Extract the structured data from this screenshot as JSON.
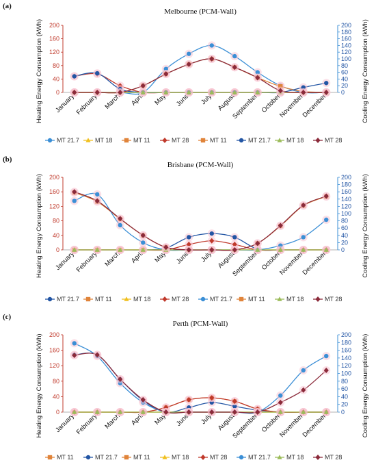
{
  "chart_data": [
    {
      "panel_label": "(a)",
      "type": "line",
      "title": "Melbourne (PCM-Wall)",
      "categories": [
        "January",
        "February",
        "March",
        "April",
        "May",
        "June",
        "July",
        "August",
        "September",
        "October",
        "November",
        "December"
      ],
      "ylabel": "Heating Energy Consumption (kWh)",
      "y2label": "Cooling  Energy Consumption (kWh)",
      "ylim": [
        0,
        200
      ],
      "y2lim": [
        0,
        200
      ],
      "yticks": [
        "0",
        "40",
        "80",
        "120",
        "160",
        "200"
      ],
      "y2ticks": [
        "0",
        "20",
        "40",
        "60",
        "80",
        "100",
        "120",
        "140",
        "160",
        "180",
        "200"
      ],
      "series": [
        {
          "name": "MT 21.7",
          "axis": "left",
          "color": "#3b8fd6",
          "marker": "circle",
          "values": [
            0,
            0,
            0,
            0,
            70,
            115,
            140,
            108,
            60,
            20,
            0,
            0
          ]
        },
        {
          "name": "MT 18",
          "axis": "left",
          "color": "#f0c020",
          "marker": "triangle",
          "values": [
            0,
            0,
            0,
            0,
            0,
            0,
            0,
            0,
            0,
            0,
            0,
            0
          ]
        },
        {
          "name": "MT 11",
          "axis": "left",
          "color": "#e0843a",
          "marker": "square",
          "values": [
            0,
            0,
            0,
            20,
            55,
            84,
            100,
            75,
            44,
            18,
            3,
            0
          ]
        },
        {
          "name": "MT 28",
          "axis": "left",
          "color": "#c0392b",
          "marker": "diamond",
          "values": [
            48,
            55,
            20,
            0,
            0,
            0,
            0,
            0,
            0,
            0,
            0,
            0
          ]
        },
        {
          "name": "MT 11",
          "axis": "right",
          "color": "#e0843a",
          "marker": "square",
          "values": [
            0,
            0,
            0,
            0,
            0,
            0,
            0,
            0,
            0,
            0,
            0,
            0
          ]
        },
        {
          "name": "MT 21.7",
          "axis": "right",
          "color": "#2255a4",
          "marker": "circle",
          "values": [
            48,
            57,
            10,
            0,
            0,
            0,
            0,
            0,
            0,
            0,
            15,
            28
          ]
        },
        {
          "name": "MT 18",
          "axis": "right",
          "color": "#9bbb59",
          "marker": "triangle",
          "values": [
            0,
            0,
            0,
            0,
            0,
            0,
            0,
            0,
            0,
            0,
            0,
            0
          ]
        },
        {
          "name": "MT 28",
          "axis": "right",
          "color": "#8b2a3a",
          "marker": "diamond",
          "values": [
            0,
            0,
            0,
            20,
            55,
            84,
            100,
            75,
            44,
            5,
            0,
            0
          ]
        }
      ]
    },
    {
      "panel_label": "(b)",
      "type": "line",
      "title": "Brisbane (PCM-Wall)",
      "categories": [
        "January",
        "February",
        "March",
        "April",
        "May",
        "June",
        "July",
        "August",
        "September",
        "October",
        "November",
        "December"
      ],
      "ylabel": "Heating Energy Consumption (kWh)",
      "y2label": "Cooling Energy Consumption (kWh)",
      "ylim": [
        0,
        200
      ],
      "y2lim": [
        0,
        200
      ],
      "yticks": [
        "0",
        "40",
        "80",
        "120",
        "160",
        "200"
      ],
      "y2ticks": [
        "0",
        "20",
        "40",
        "60",
        "80",
        "100",
        "120",
        "140",
        "160",
        "180",
        "200"
      ],
      "series": [
        {
          "name": "MT 21.7",
          "axis": "left",
          "color": "#2255a4",
          "marker": "circle",
          "values": [
            0,
            0,
            0,
            0,
            5,
            35,
            45,
            35,
            2,
            0,
            0,
            0
          ]
        },
        {
          "name": "MT 11",
          "axis": "left",
          "color": "#e0843a",
          "marker": "square",
          "values": [
            158,
            133,
            85,
            40,
            7,
            0,
            0,
            0,
            0,
            0,
            0,
            0
          ]
        },
        {
          "name": "MT 18",
          "axis": "left",
          "color": "#f0c020",
          "marker": "triangle",
          "values": [
            0,
            0,
            0,
            0,
            0,
            0,
            0,
            0,
            0,
            0,
            0,
            0
          ]
        },
        {
          "name": "MT 28",
          "axis": "left",
          "color": "#c0392b",
          "marker": "diamond",
          "values": [
            0,
            0,
            0,
            0,
            0,
            15,
            25,
            15,
            0,
            0,
            0,
            0
          ]
        },
        {
          "name": "MT 21.7",
          "axis": "right",
          "color": "#3b8fd6",
          "marker": "circle",
          "values": [
            135,
            153,
            68,
            20,
            0,
            0,
            0,
            0,
            0,
            12,
            35,
            83
          ]
        },
        {
          "name": "MT 11",
          "axis": "right",
          "color": "#e0843a",
          "marker": "square",
          "values": [
            0,
            0,
            0,
            0,
            0,
            0,
            0,
            0,
            18,
            66,
            122,
            147
          ]
        },
        {
          "name": "MT 18",
          "axis": "right",
          "color": "#9bbb59",
          "marker": "triangle",
          "values": [
            0,
            0,
            0,
            0,
            0,
            0,
            0,
            0,
            0,
            0,
            0,
            0
          ]
        },
        {
          "name": "MT 28",
          "axis": "right",
          "color": "#8b2a3a",
          "marker": "diamond",
          "values": [
            160,
            135,
            86,
            40,
            7,
            0,
            0,
            0,
            18,
            67,
            123,
            148
          ]
        }
      ]
    },
    {
      "panel_label": "(c)",
      "type": "line",
      "title": "Perth (PCM-Wall)",
      "categories": [
        "January",
        "February",
        "March",
        "April",
        "May",
        "June",
        "July",
        "August",
        "September",
        "October",
        "November",
        "December"
      ],
      "ylabel": "Heating Energy Consumption (kWh)",
      "y2label": "Cooling  Energy Consumption (kWh)",
      "ylim": [
        0,
        200
      ],
      "y2lim": [
        0,
        200
      ],
      "yticks": [
        "0",
        "40",
        "80",
        "120",
        "160",
        "200"
      ],
      "y2ticks": [
        "0",
        "20",
        "40",
        "60",
        "80",
        "100",
        "120",
        "140",
        "160",
        "180",
        "200"
      ],
      "series": [
        {
          "name": "MT 11",
          "axis": "left",
          "color": "#e0843a",
          "marker": "square",
          "values": [
            0,
            0,
            0,
            0,
            0,
            0,
            0,
            0,
            0,
            0,
            0,
            0
          ]
        },
        {
          "name": "MT 21.7",
          "axis": "left",
          "color": "#2255a4",
          "marker": "circle",
          "values": [
            148,
            148,
            85,
            30,
            0,
            12,
            25,
            15,
            5,
            0,
            0,
            0
          ]
        },
        {
          "name": "MT 11",
          "axis": "left",
          "color": "#e0843a",
          "marker": "square",
          "values": [
            0,
            0,
            0,
            0,
            12,
            32,
            37,
            28,
            8,
            0,
            0,
            0
          ]
        },
        {
          "name": "MT 18",
          "axis": "left",
          "color": "#f0c020",
          "marker": "triangle",
          "values": [
            0,
            0,
            0,
            0,
            0,
            0,
            0,
            0,
            0,
            0,
            0,
            0
          ]
        },
        {
          "name": "MT 28",
          "axis": "left",
          "color": "#c0392b",
          "marker": "diamond",
          "values": [
            0,
            0,
            0,
            0,
            12,
            32,
            37,
            28,
            8,
            0,
            0,
            0
          ]
        },
        {
          "name": "MT 21.7",
          "axis": "right",
          "color": "#3b8fd6",
          "marker": "circle",
          "values": [
            178,
            145,
            75,
            25,
            0,
            0,
            0,
            0,
            0,
            43,
            108,
            145
          ]
        },
        {
          "name": "MT 18",
          "axis": "right",
          "color": "#9bbb59",
          "marker": "triangle",
          "values": [
            0,
            0,
            0,
            0,
            0,
            0,
            0,
            0,
            0,
            0,
            0,
            0
          ]
        },
        {
          "name": "MT 28",
          "axis": "right",
          "color": "#8b2a3a",
          "marker": "diamond",
          "values": [
            147,
            148,
            85,
            32,
            0,
            0,
            0,
            0,
            0,
            25,
            57,
            108
          ]
        }
      ]
    }
  ]
}
